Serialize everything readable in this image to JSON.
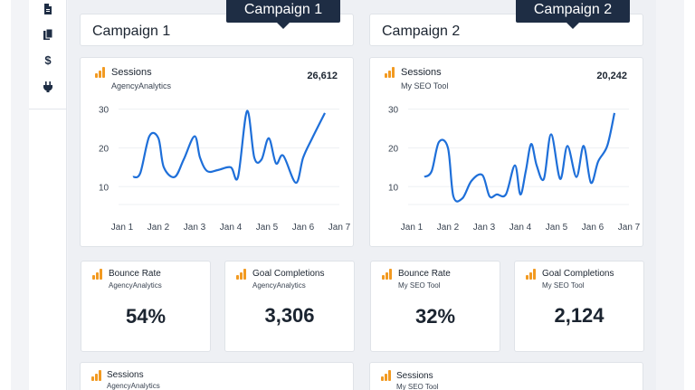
{
  "rail": {
    "icons": [
      "document-icon",
      "pages-icon",
      "dollar-icon",
      "plug-icon"
    ]
  },
  "campaigns": [
    {
      "title": "Campaign 1",
      "tooltip": "Campaign 1",
      "sessions_chart": {
        "metric": "Sessions",
        "source": "AgencyAnalytics",
        "total": "26,612"
      },
      "bounce": {
        "metric": "Bounce Rate",
        "source": "AgencyAnalytics",
        "value": "54%"
      },
      "goals": {
        "metric": "Goal Completions",
        "source": "AgencyAnalytics",
        "value": "3,306"
      },
      "footer": {
        "metric": "Sessions",
        "source": "AgencyAnalytics"
      }
    },
    {
      "title": "Campaign 2",
      "tooltip": "Campaign 2",
      "sessions_chart": {
        "metric": "Sessions",
        "source": "My SEO Tool",
        "total": "20,242"
      },
      "bounce": {
        "metric": "Bounce Rate",
        "source": "My SEO Tool",
        "value": "32%"
      },
      "goals": {
        "metric": "Goal Completions",
        "source": "My SEO Tool",
        "value": "2,124"
      },
      "footer": {
        "metric": "Sessions",
        "source": "My SEO Tool"
      }
    }
  ],
  "chart_data": [
    {
      "type": "line",
      "x_tick_labels": [
        "Jan 1",
        "Jan 2",
        "Jan 3",
        "Jan 4",
        "Jan 5",
        "Jan 6",
        "Jan 7"
      ],
      "y_ticks": [
        10,
        20,
        30
      ],
      "ylim": [
        4,
        32
      ],
      "xlim": [
        0,
        6
      ],
      "line_color": "#1e6fd9",
      "grid": true,
      "series": [
        {
          "x": [
            0.3,
            0.5,
            0.75,
            1.0,
            1.15,
            1.45,
            1.7,
            2.0,
            2.15,
            2.35,
            2.65,
            3.0,
            3.2,
            3.45,
            3.65,
            3.85,
            4.05,
            4.25,
            4.45,
            4.8,
            5.0,
            5.25,
            5.6
          ],
          "y": [
            12.5,
            13.5,
            23.0,
            22.5,
            15.0,
            12.5,
            17.0,
            23.0,
            17.5,
            14.0,
            14.3,
            15.0,
            12.5,
            29.5,
            17.5,
            17.0,
            22.5,
            16.0,
            18.0,
            11.0,
            17.5,
            22.5,
            29.0
          ]
        }
      ]
    },
    {
      "type": "line",
      "x_tick_labels": [
        "Jan 1",
        "Jan 2",
        "Jan 3",
        "Jan 4",
        "Jan 5",
        "Jan 6",
        "Jan 7"
      ],
      "y_ticks": [
        10,
        20,
        30
      ],
      "ylim": [
        4,
        32
      ],
      "xlim": [
        0,
        6
      ],
      "line_color": "#1e6fd9",
      "grid": true,
      "series": [
        {
          "x": [
            0.35,
            0.55,
            0.75,
            1.0,
            1.15,
            1.4,
            1.65,
            1.95,
            2.15,
            2.35,
            2.6,
            2.85,
            3.0,
            3.15,
            3.3,
            3.45,
            3.65,
            3.85,
            4.1,
            4.3,
            4.55,
            4.75,
            4.95,
            5.15,
            5.4,
            5.6
          ],
          "y": [
            12.5,
            14.0,
            21.5,
            20.0,
            7.5,
            7.0,
            11.5,
            13.0,
            7.5,
            8.0,
            8.0,
            15.5,
            8.0,
            14.0,
            21.0,
            15.5,
            12.0,
            23.5,
            12.0,
            20.5,
            12.5,
            20.5,
            11.0,
            16.5,
            20.5,
            29.0
          ]
        }
      ]
    }
  ]
}
